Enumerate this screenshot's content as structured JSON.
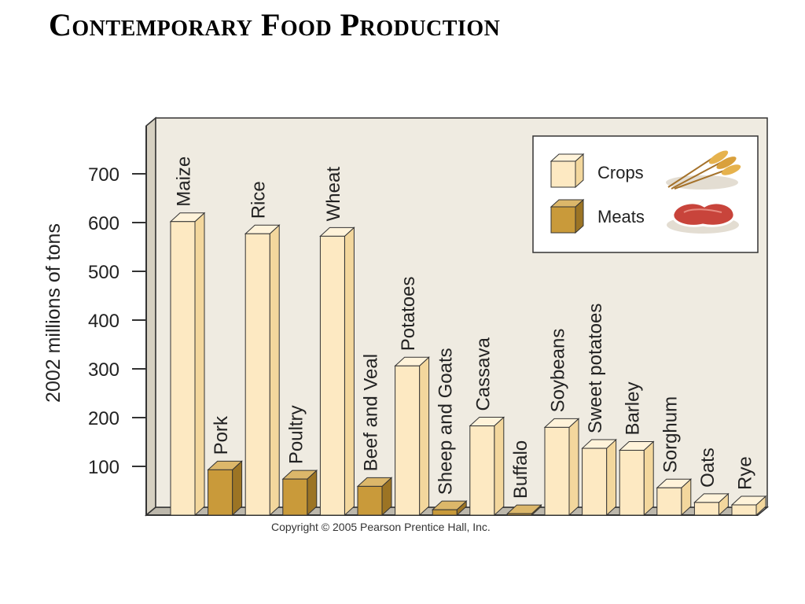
{
  "slide": {
    "title": "Contemporary Food Production",
    "copyright": "Copyright © 2005 Pearson Prentice Hall, Inc."
  },
  "chart_data": {
    "type": "bar",
    "ylabel": "2002 millions of tons",
    "xlabel": "",
    "ylim": [
      0,
      800
    ],
    "yticks": [
      100,
      200,
      300,
      400,
      500,
      600,
      700
    ],
    "categories": [
      "Maize",
      "Pork",
      "Rice",
      "Poultry",
      "Wheat",
      "Beef and Veal",
      "Potatoes",
      "Sheep and Goats",
      "Cassava",
      "Buffalo",
      "Soybeans",
      "Sweet potatoes",
      "Barley",
      "Sorghum",
      "Oats",
      "Rye"
    ],
    "values": [
      602,
      93,
      577,
      74,
      572,
      59,
      306,
      11,
      183,
      3,
      180,
      137,
      133,
      56,
      26,
      21
    ],
    "groups": [
      "Crops",
      "Meats",
      "Crops",
      "Meats",
      "Crops",
      "Meats",
      "Crops",
      "Meats",
      "Crops",
      "Meats",
      "Crops",
      "Crops",
      "Crops",
      "Crops",
      "Crops",
      "Crops"
    ],
    "legend": {
      "position": "top-right",
      "items": [
        {
          "name": "Crops",
          "color": "#fde9c2",
          "icon": "wheat-icon"
        },
        {
          "name": "Meats",
          "color": "#c99a3a",
          "icon": "steak-icon"
        }
      ]
    },
    "colors": {
      "crop_front": "#fde9c2",
      "crop_side": "#f3d79d",
      "crop_top": "#fff3da",
      "meat_front": "#c99a3a",
      "meat_side": "#9c7424",
      "meat_top": "#dcb76a",
      "background": "#efebe1",
      "wall_side": "#d6d0c1",
      "floor": "#bdb8ac"
    },
    "grid": false
  }
}
